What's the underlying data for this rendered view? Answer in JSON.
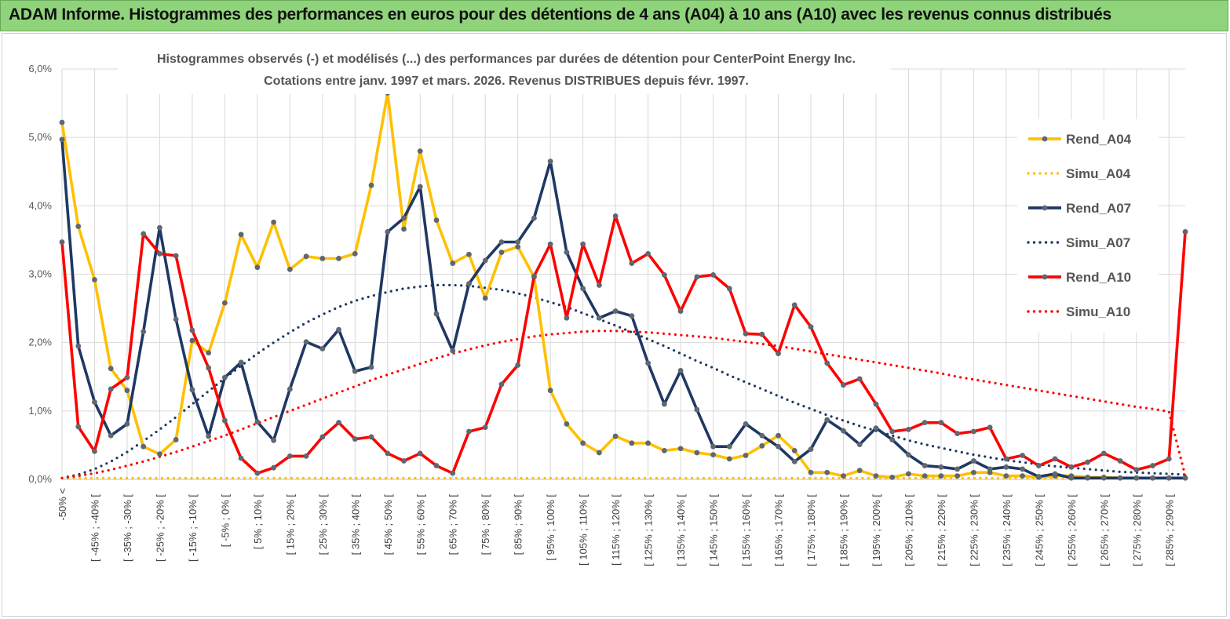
{
  "header": {
    "title": "ADAM Informe. Histogrammes des performances en euros pour des détentions de 4 ans (A04) à 10 ans (A10) avec les revenus connus distribués"
  },
  "chart_data": {
    "type": "line",
    "title": "Histogrammes observés (-) et modélisés (...) des performances par durées de détention pour CenterPoint Energy Inc.",
    "subtitle": "Cotations entre janv. 1997 et mars. 2026. Revenus DISTRIBUES depuis févr. 1997.",
    "ylim": [
      0,
      6
    ],
    "yticks": [
      "0,0%",
      "1,0%",
      "2,0%",
      "3,0%",
      "4,0%",
      "5,0%",
      "6,0%"
    ],
    "xlabels": [
      "-50% <",
      "[ -45% ; -40% [",
      "[ -35% ; -30% [",
      "[ -25% ; -20% [",
      "[ -15% ; -10% [",
      "[ -5% ; 0% [",
      "[ 5% ; 10% [",
      "[ 15% ; 20% [",
      "[ 25% ; 30% [",
      "[ 35% ; 40% [",
      "[ 45% ; 50% [",
      "[ 55% ; 60% [",
      "[ 65% ; 70% [",
      "[ 75% ; 80% [",
      "[ 85% ; 90% [",
      "[ 95% ; 100% [",
      "[ 105% ; 110% [",
      "[ 115% ; 120% [",
      "[ 125% ; 130% [",
      "[ 135% ; 140% [",
      "[ 145% ; 150% [",
      "[ 155% ; 160% [",
      "[ 165% ; 170% [",
      "[ 175% ; 180% [",
      "[ 185% ; 190% [",
      "[ 195% ; 200% [",
      "[ 205% ; 210% [",
      "[ 215% ; 220% [",
      "[ 225% ; 230% [",
      "[ 235% ; 240% [",
      "[ 245% ; 250% [",
      "[ 255% ; 260% [",
      "[ 265% ; 270% [",
      "[ 275% ; 280% [",
      "[ 285% ; 290% ["
    ],
    "n_points": 70,
    "legend_position": "right",
    "series": [
      {
        "name": "Rend_A04",
        "style": "solid",
        "color": "#ffc000",
        "values": [
          5.22,
          3.7,
          2.92,
          1.62,
          1.3,
          0.48,
          0.37,
          0.58,
          2.03,
          1.85,
          2.58,
          3.58,
          3.1,
          3.76,
          3.07,
          3.26,
          3.23,
          3.23,
          3.3,
          4.3,
          5.65,
          3.66,
          4.8,
          3.79,
          3.16,
          3.29,
          2.65,
          3.32,
          3.4,
          2.96,
          1.3,
          0.81,
          0.53,
          0.39,
          0.63,
          0.53,
          0.53,
          0.42,
          0.45,
          0.39,
          0.36,
          0.3,
          0.35,
          0.49,
          0.64,
          0.42,
          0.1,
          0.1,
          0.05,
          0.13,
          0.05,
          0.03,
          0.08,
          0.05,
          0.05,
          0.05,
          0.1,
          0.1,
          0.05,
          0.05,
          0.03,
          0.05,
          0.05,
          0.03,
          0.03,
          0.02,
          0.02,
          0.02,
          0.02,
          0.02
        ]
      },
      {
        "name": "Simu_A04",
        "style": "dotted",
        "color": "#ffc000",
        "values": [
          0.02,
          0.02,
          0.02,
          0.02,
          0.02,
          0.02,
          0.02,
          0.02,
          0.02,
          0.02,
          0.02,
          0.02,
          0.02,
          0.02,
          0.02,
          0.02,
          0.02,
          0.02,
          0.02,
          0.02,
          0.02,
          0.02,
          0.02,
          0.02,
          0.02,
          0.02,
          0.02,
          0.02,
          0.02,
          0.02,
          0.02,
          0.02,
          0.02,
          0.02,
          0.02,
          0.02,
          0.02,
          0.02,
          0.02,
          0.02,
          0.02,
          0.02,
          0.02,
          0.02,
          0.02,
          0.02,
          0.02,
          0.02,
          0.02,
          0.02,
          0.02,
          0.02,
          0.02,
          0.02,
          0.02,
          0.02,
          0.02,
          0.02,
          0.02,
          0.02,
          0.02,
          0.02,
          0.02,
          0.02,
          0.02,
          0.02,
          0.02,
          0.02,
          0.02,
          0.02
        ]
      },
      {
        "name": "Rend_A07",
        "style": "solid",
        "color": "#1f3864",
        "values": [
          4.97,
          1.95,
          1.13,
          0.64,
          0.81,
          2.16,
          3.68,
          2.34,
          1.31,
          0.63,
          1.49,
          1.71,
          0.84,
          0.57,
          1.32,
          2.01,
          1.91,
          2.19,
          1.58,
          1.64,
          3.62,
          3.82,
          4.28,
          2.42,
          1.88,
          2.86,
          3.2,
          3.47,
          3.47,
          3.82,
          4.65,
          3.32,
          2.79,
          2.36,
          2.46,
          2.39,
          1.7,
          1.1,
          1.59,
          1.02,
          0.48,
          0.48,
          0.81,
          0.64,
          0.48,
          0.26,
          0.44,
          0.87,
          0.71,
          0.51,
          0.75,
          0.58,
          0.36,
          0.2,
          0.18,
          0.15,
          0.27,
          0.15,
          0.18,
          0.15,
          0.04,
          0.08,
          0.02,
          0.02,
          0.02,
          0.02,
          0.02,
          0.02,
          0.02,
          0.02
        ]
      },
      {
        "name": "Simu_A07",
        "style": "dotted",
        "color": "#1f3864",
        "values": [
          0.02,
          0.07,
          0.15,
          0.26,
          0.4,
          0.56,
          0.73,
          0.91,
          1.1,
          1.29,
          1.48,
          1.66,
          1.84,
          2.0,
          2.15,
          2.29,
          2.41,
          2.52,
          2.61,
          2.68,
          2.74,
          2.79,
          2.82,
          2.84,
          2.84,
          2.83,
          2.8,
          2.77,
          2.72,
          2.66,
          2.59,
          2.52,
          2.43,
          2.34,
          2.25,
          2.15,
          2.05,
          1.95,
          1.84,
          1.73,
          1.63,
          1.52,
          1.42,
          1.32,
          1.22,
          1.12,
          1.03,
          0.94,
          0.86,
          0.78,
          0.71,
          0.64,
          0.57,
          0.51,
          0.46,
          0.41,
          0.36,
          0.32,
          0.28,
          0.25,
          0.22,
          0.19,
          0.17,
          0.15,
          0.13,
          0.11,
          0.1,
          0.09,
          0.08,
          0.07
        ]
      },
      {
        "name": "Rend_A10",
        "style": "solid",
        "color": "#ff0000",
        "values": [
          3.47,
          0.77,
          0.41,
          1.32,
          1.49,
          3.59,
          3.3,
          3.27,
          2.18,
          1.63,
          0.86,
          0.31,
          0.09,
          0.17,
          0.34,
          0.34,
          0.62,
          0.83,
          0.59,
          0.62,
          0.38,
          0.27,
          0.38,
          0.2,
          0.09,
          0.7,
          0.76,
          1.39,
          1.67,
          2.97,
          3.44,
          2.36,
          3.44,
          2.84,
          3.85,
          3.16,
          3.3,
          2.99,
          2.46,
          2.96,
          2.99,
          2.79,
          2.13,
          2.12,
          1.84,
          2.55,
          2.23,
          1.7,
          1.38,
          1.47,
          1.1,
          0.7,
          0.73,
          0.83,
          0.83,
          0.67,
          0.7,
          0.76,
          0.3,
          0.35,
          0.2,
          0.3,
          0.18,
          0.25,
          0.38,
          0.27,
          0.14,
          0.2,
          0.3,
          3.62
        ]
      },
      {
        "name": "Simu_A10",
        "style": "dotted",
        "color": "#ff0000",
        "values": [
          0.02,
          0.05,
          0.09,
          0.14,
          0.2,
          0.26,
          0.33,
          0.4,
          0.48,
          0.56,
          0.64,
          0.73,
          0.82,
          0.91,
          1.0,
          1.09,
          1.18,
          1.27,
          1.36,
          1.45,
          1.53,
          1.61,
          1.69,
          1.77,
          1.84,
          1.9,
          1.96,
          2.01,
          2.05,
          2.09,
          2.12,
          2.14,
          2.16,
          2.17,
          2.17,
          2.16,
          2.15,
          2.13,
          2.11,
          2.09,
          2.07,
          2.04,
          2.01,
          1.98,
          1.95,
          1.91,
          1.87,
          1.83,
          1.79,
          1.75,
          1.71,
          1.67,
          1.63,
          1.59,
          1.55,
          1.5,
          1.46,
          1.42,
          1.38,
          1.34,
          1.3,
          1.26,
          1.22,
          1.18,
          1.14,
          1.1,
          1.06,
          1.03,
          0.99,
          0.05
        ]
      }
    ]
  }
}
